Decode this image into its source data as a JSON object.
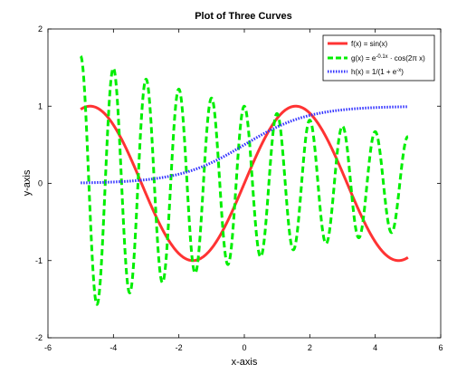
{
  "chart_data": {
    "type": "line",
    "title": "Plot of Three Curves",
    "xlabel": "x-axis",
    "ylabel": "y-axis",
    "xlim": [
      -6,
      6
    ],
    "ylim": [
      -2,
      2
    ],
    "x_ticks": [
      "-6",
      "-4",
      "-2",
      "0",
      "2",
      "4",
      "6"
    ],
    "y_ticks": [
      "-2",
      "-1",
      "0",
      "1",
      "2"
    ],
    "grid": false,
    "legend_position": "top-right",
    "x_domain": [
      -5,
      5
    ],
    "series": [
      {
        "name": "f(x) = sin(x)",
        "legend_label": "f(x) = sin(x)",
        "function": "sin",
        "color": "#ff3333",
        "style": "solid"
      },
      {
        "name": "g(x) = e^{-0.1x} · cos(2πx)",
        "legend_label": "g(x) = e-0.1x · cos(2π x)",
        "function": "damped_cos",
        "color": "#00ee00",
        "style": "dashed"
      },
      {
        "name": "h(x) = 1/(1 + e^{-x})",
        "legend_label": "h(x) = 1/(1 + e-x)",
        "function": "sigmoid",
        "color": "#3333ff",
        "style": "dotted"
      }
    ],
    "legend": {
      "f_label": "f(x) = sin(x)",
      "g_label_pre": "g(x) = e",
      "g_label_sup": "-0.1x",
      "g_label_post": " · cos(2π x)",
      "h_label_pre": "h(x) = 1/(1 + e",
      "h_label_sup": "-x",
      "h_label_post": ")"
    }
  }
}
